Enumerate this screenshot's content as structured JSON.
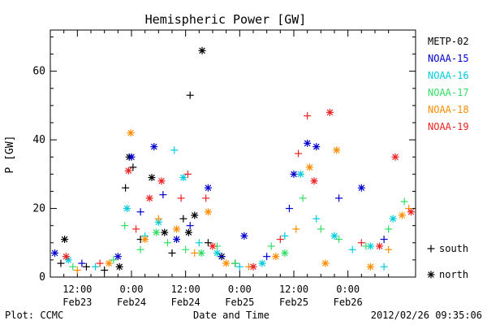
{
  "chart_data": {
    "type": "scatter",
    "title": "Hemispheric Power [GW]",
    "ylabel": "P [GW]",
    "xlabel": "Date and Time",
    "ylim": [
      0,
      72
    ],
    "xlim": [
      "2012-02-23 06:00",
      "2012-02-26 15:00"
    ],
    "y_ticks": [
      0,
      20,
      40,
      60
    ],
    "x_ticks": [
      {
        "time": "2012-02-23 12:00",
        "top": "12:00",
        "bottom": "Feb23"
      },
      {
        "time": "2012-02-24 00:00",
        "top": "0:00",
        "bottom": "Feb24"
      },
      {
        "time": "2012-02-24 12:00",
        "top": "12:00",
        "bottom": "Feb24"
      },
      {
        "time": "2012-02-25 00:00",
        "top": "0:00",
        "bottom": "Feb25"
      },
      {
        "time": "2012-02-25 12:00",
        "top": "12:00",
        "bottom": "Feb25"
      },
      {
        "time": "2012-02-26 00:00",
        "top": "0:00",
        "bottom": "Feb26"
      }
    ],
    "footer_left": "Plot: CCMC",
    "footer_right": "2012/02/26 09:35:06",
    "marker_legend": [
      {
        "marker": "+",
        "label": "south"
      },
      {
        "marker": "*",
        "label": "north"
      }
    ],
    "series": [
      {
        "name": "METP-02",
        "color": "#000000",
        "points": [
          {
            "t": "2012-02-23 08:20",
            "v": 4,
            "m": "+"
          },
          {
            "t": "2012-02-23 09:10",
            "v": 11,
            "m": "*"
          },
          {
            "t": "2012-02-23 14:00",
            "v": 3,
            "m": "+"
          },
          {
            "t": "2012-02-23 18:00",
            "v": 2,
            "m": "+"
          },
          {
            "t": "2012-02-23 21:20",
            "v": 3,
            "m": "*"
          },
          {
            "t": "2012-02-23 22:40",
            "v": 26,
            "m": "+"
          },
          {
            "t": "2012-02-23 23:30",
            "v": 35,
            "m": "*"
          },
          {
            "t": "2012-02-24 00:20",
            "v": 32,
            "m": "+"
          },
          {
            "t": "2012-02-24 02:00",
            "v": 11,
            "m": "+"
          },
          {
            "t": "2012-02-24 04:30",
            "v": 29,
            "m": "*"
          },
          {
            "t": "2012-02-24 07:20",
            "v": 13,
            "m": "*"
          },
          {
            "t": "2012-02-24 09:00",
            "v": 7,
            "m": "+"
          },
          {
            "t": "2012-02-24 11:30",
            "v": 17,
            "m": "+"
          },
          {
            "t": "2012-02-24 12:40",
            "v": 13,
            "m": "*"
          },
          {
            "t": "2012-02-24 13:00",
            "v": 53,
            "m": "+"
          },
          {
            "t": "2012-02-24 14:00",
            "v": 18,
            "m": "*"
          },
          {
            "t": "2012-02-24 15:40",
            "v": 66,
            "m": "*"
          },
          {
            "t": "2012-02-24 17:00",
            "v": 10,
            "m": "+"
          },
          {
            "t": "2012-02-24 20:00",
            "v": 6,
            "m": "*"
          },
          {
            "t": "2012-02-24 23:00",
            "v": 4,
            "m": "+"
          }
        ]
      },
      {
        "name": "NOAA-15",
        "color": "#0000cc",
        "points": [
          {
            "t": "2012-02-23 07:00",
            "v": 7,
            "m": "*"
          },
          {
            "t": "2012-02-23 13:00",
            "v": 4,
            "m": "+"
          },
          {
            "t": "2012-02-23 21:00",
            "v": 6,
            "m": "*"
          },
          {
            "t": "2012-02-24 00:00",
            "v": 35,
            "m": "*"
          },
          {
            "t": "2012-02-24 02:00",
            "v": 19,
            "m": "+"
          },
          {
            "t": "2012-02-24 05:00",
            "v": 38,
            "m": "*"
          },
          {
            "t": "2012-02-24 07:00",
            "v": 24,
            "m": "+"
          },
          {
            "t": "2012-02-24 10:00",
            "v": 11,
            "m": "*"
          },
          {
            "t": "2012-02-24 13:00",
            "v": 15,
            "m": "+"
          },
          {
            "t": "2012-02-24 17:00",
            "v": 26,
            "m": "*"
          },
          {
            "t": "2012-02-24 20:00",
            "v": 6,
            "m": "+"
          },
          {
            "t": "2012-02-25 01:00",
            "v": 12,
            "m": "*"
          },
          {
            "t": "2012-02-25 06:00",
            "v": 6,
            "m": "+"
          },
          {
            "t": "2012-02-25 11:00",
            "v": 20,
            "m": "+"
          },
          {
            "t": "2012-02-25 12:00",
            "v": 30,
            "m": "*"
          },
          {
            "t": "2012-02-25 15:00",
            "v": 39,
            "m": "*"
          },
          {
            "t": "2012-02-25 17:00",
            "v": 38,
            "m": "*"
          },
          {
            "t": "2012-02-25 22:00",
            "v": 23,
            "m": "+"
          },
          {
            "t": "2012-02-26 03:00",
            "v": 26,
            "m": "*"
          },
          {
            "t": "2012-02-26 08:00",
            "v": 11,
            "m": "+"
          }
        ]
      },
      {
        "name": "NOAA-16",
        "color": "#00ccdd",
        "points": [
          {
            "t": "2012-02-23 10:00",
            "v": 5,
            "m": "*"
          },
          {
            "t": "2012-02-23 16:00",
            "v": 3,
            "m": "+"
          },
          {
            "t": "2012-02-23 23:00",
            "v": 20,
            "m": "*"
          },
          {
            "t": "2012-02-24 03:00",
            "v": 12,
            "m": "+"
          },
          {
            "t": "2012-02-24 06:00",
            "v": 16,
            "m": "*"
          },
          {
            "t": "2012-02-24 09:30",
            "v": 37,
            "m": "+"
          },
          {
            "t": "2012-02-24 11:30",
            "v": 29,
            "m": "*"
          },
          {
            "t": "2012-02-24 15:00",
            "v": 10,
            "m": "+"
          },
          {
            "t": "2012-02-24 19:00",
            "v": 7,
            "m": "*"
          },
          {
            "t": "2012-02-25 00:00",
            "v": 3,
            "m": "+"
          },
          {
            "t": "2012-02-25 05:00",
            "v": 4,
            "m": "*"
          },
          {
            "t": "2012-02-25 10:00",
            "v": 12,
            "m": "+"
          },
          {
            "t": "2012-02-25 13:30",
            "v": 30,
            "m": "*"
          },
          {
            "t": "2012-02-25 17:00",
            "v": 17,
            "m": "+"
          },
          {
            "t": "2012-02-25 21:00",
            "v": 12,
            "m": "*"
          },
          {
            "t": "2012-02-26 01:00",
            "v": 8,
            "m": "+"
          },
          {
            "t": "2012-02-26 05:00",
            "v": 9,
            "m": "*"
          },
          {
            "t": "2012-02-26 08:00",
            "v": 3,
            "m": "+"
          },
          {
            "t": "2012-02-26 10:00",
            "v": 17,
            "m": "*"
          }
        ]
      },
      {
        "name": "NOAA-17",
        "color": "#33dd66",
        "points": [
          {
            "t": "2012-02-23 11:00",
            "v": 3,
            "m": "+"
          },
          {
            "t": "2012-02-23 20:00",
            "v": 5,
            "m": "+"
          },
          {
            "t": "2012-02-23 22:30",
            "v": 15,
            "m": "+"
          },
          {
            "t": "2012-02-24 02:00",
            "v": 8,
            "m": "+"
          },
          {
            "t": "2012-02-24 05:30",
            "v": 13,
            "m": "*"
          },
          {
            "t": "2012-02-24 08:00",
            "v": 10,
            "m": "+"
          },
          {
            "t": "2012-02-24 12:00",
            "v": 8,
            "m": "+"
          },
          {
            "t": "2012-02-24 15:30",
            "v": 7,
            "m": "*"
          },
          {
            "t": "2012-02-24 19:00",
            "v": 9,
            "m": "+"
          },
          {
            "t": "2012-02-24 23:00",
            "v": 4,
            "m": "+"
          },
          {
            "t": "2012-02-25 07:00",
            "v": 9,
            "m": "+"
          },
          {
            "t": "2012-02-25 10:00",
            "v": 7,
            "m": "*"
          },
          {
            "t": "2012-02-25 14:00",
            "v": 23,
            "m": "+"
          },
          {
            "t": "2012-02-25 18:00",
            "v": 14,
            "m": "+"
          },
          {
            "t": "2012-02-25 22:00",
            "v": 11,
            "m": "+"
          },
          {
            "t": "2012-02-26 04:00",
            "v": 9,
            "m": "+"
          },
          {
            "t": "2012-02-26 09:00",
            "v": 14,
            "m": "+"
          },
          {
            "t": "2012-02-26 12:30",
            "v": 22,
            "m": "+"
          }
        ]
      },
      {
        "name": "NOAA-18",
        "color": "#ff8c00",
        "points": [
          {
            "t": "2012-02-23 12:00",
            "v": 2,
            "m": "+"
          },
          {
            "t": "2012-02-23 19:00",
            "v": 4,
            "m": "*"
          },
          {
            "t": "2012-02-23 23:50",
            "v": 42,
            "m": "*"
          },
          {
            "t": "2012-02-24 03:00",
            "v": 11,
            "m": "*"
          },
          {
            "t": "2012-02-24 06:00",
            "v": 17,
            "m": "+"
          },
          {
            "t": "2012-02-24 10:00",
            "v": 14,
            "m": "*"
          },
          {
            "t": "2012-02-24 14:00",
            "v": 7,
            "m": "+"
          },
          {
            "t": "2012-02-24 17:00",
            "v": 19,
            "m": "*"
          },
          {
            "t": "2012-02-24 21:00",
            "v": 4,
            "m": "*"
          },
          {
            "t": "2012-02-25 02:00",
            "v": 3,
            "m": "+"
          },
          {
            "t": "2012-02-25 08:00",
            "v": 6,
            "m": "*"
          },
          {
            "t": "2012-02-25 12:30",
            "v": 14,
            "m": "+"
          },
          {
            "t": "2012-02-25 15:30",
            "v": 32,
            "m": "*"
          },
          {
            "t": "2012-02-25 19:00",
            "v": 4,
            "m": "*"
          },
          {
            "t": "2012-02-25 21:30",
            "v": 37,
            "m": "*"
          },
          {
            "t": "2012-02-26 05:00",
            "v": 3,
            "m": "*"
          },
          {
            "t": "2012-02-26 09:00",
            "v": 8,
            "m": "+"
          },
          {
            "t": "2012-02-26 12:00",
            "v": 18,
            "m": "*"
          },
          {
            "t": "2012-02-26 13:30",
            "v": 20,
            "m": "+"
          }
        ]
      },
      {
        "name": "NOAA-19",
        "color": "#ee2222",
        "points": [
          {
            "t": "2012-02-23 09:30",
            "v": 6,
            "m": "*"
          },
          {
            "t": "2012-02-23 17:00",
            "v": 4,
            "m": "+"
          },
          {
            "t": "2012-02-23 23:20",
            "v": 31,
            "m": "*"
          },
          {
            "t": "2012-02-24 01:00",
            "v": 14,
            "m": "+"
          },
          {
            "t": "2012-02-24 04:00",
            "v": 23,
            "m": "*"
          },
          {
            "t": "2012-02-24 06:40",
            "v": 28,
            "m": "*"
          },
          {
            "t": "2012-02-24 11:00",
            "v": 23,
            "m": "+"
          },
          {
            "t": "2012-02-24 12:30",
            "v": 30,
            "m": "+"
          },
          {
            "t": "2012-02-24 16:30",
            "v": 23,
            "m": "+"
          },
          {
            "t": "2012-02-24 18:00",
            "v": 9,
            "m": "*"
          },
          {
            "t": "2012-02-25 03:00",
            "v": 3,
            "m": "*"
          },
          {
            "t": "2012-02-25 09:00",
            "v": 11,
            "m": "+"
          },
          {
            "t": "2012-02-25 13:00",
            "v": 36,
            "m": "+"
          },
          {
            "t": "2012-02-25 15:00",
            "v": 47,
            "m": "+"
          },
          {
            "t": "2012-02-25 16:30",
            "v": 28,
            "m": "*"
          },
          {
            "t": "2012-02-25 20:00",
            "v": 48,
            "m": "*"
          },
          {
            "t": "2012-02-26 03:00",
            "v": 10,
            "m": "+"
          },
          {
            "t": "2012-02-26 07:00",
            "v": 9,
            "m": "*"
          },
          {
            "t": "2012-02-26 10:30",
            "v": 35,
            "m": "*"
          },
          {
            "t": "2012-02-26 14:00",
            "v": 19,
            "m": "*"
          }
        ]
      }
    ]
  }
}
